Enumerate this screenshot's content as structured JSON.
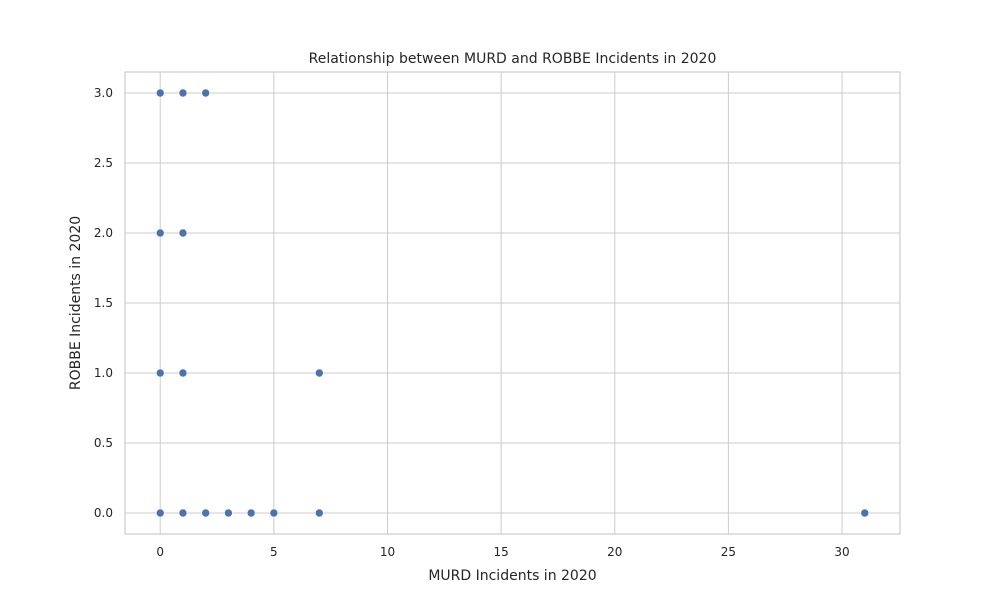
{
  "chart_data": {
    "type": "scatter",
    "title": "Relationship between MURD and ROBBE Incidents in 2020",
    "xlabel": "MURD Incidents in 2020",
    "ylabel": "ROBBE Incidents in 2020",
    "xlim": [
      -1.55,
      32.55
    ],
    "ylim": [
      -0.15,
      3.15
    ],
    "xticks": [
      0,
      5,
      10,
      15,
      20,
      25,
      30
    ],
    "yticks": [
      0.0,
      0.5,
      1.0,
      1.5,
      2.0,
      2.5,
      3.0
    ],
    "xtick_labels": [
      "0",
      "5",
      "10",
      "15",
      "20",
      "25",
      "30"
    ],
    "ytick_labels": [
      "0.0",
      "0.5",
      "1.0",
      "1.5",
      "2.0",
      "2.5",
      "3.0"
    ],
    "grid": true,
    "legend": "none",
    "point_color": "#4c72b0",
    "grid_color": "#cccccc",
    "spine_color": "#cccccc",
    "points": [
      {
        "x": 0,
        "y": 3
      },
      {
        "x": 1,
        "y": 3
      },
      {
        "x": 2,
        "y": 3
      },
      {
        "x": 0,
        "y": 2
      },
      {
        "x": 1,
        "y": 2
      },
      {
        "x": 0,
        "y": 1
      },
      {
        "x": 1,
        "y": 1
      },
      {
        "x": 7,
        "y": 1
      },
      {
        "x": 0,
        "y": 0
      },
      {
        "x": 1,
        "y": 0
      },
      {
        "x": 2,
        "y": 0
      },
      {
        "x": 3,
        "y": 0
      },
      {
        "x": 4,
        "y": 0
      },
      {
        "x": 5,
        "y": 0
      },
      {
        "x": 7,
        "y": 0
      },
      {
        "x": 31,
        "y": 0
      }
    ]
  }
}
